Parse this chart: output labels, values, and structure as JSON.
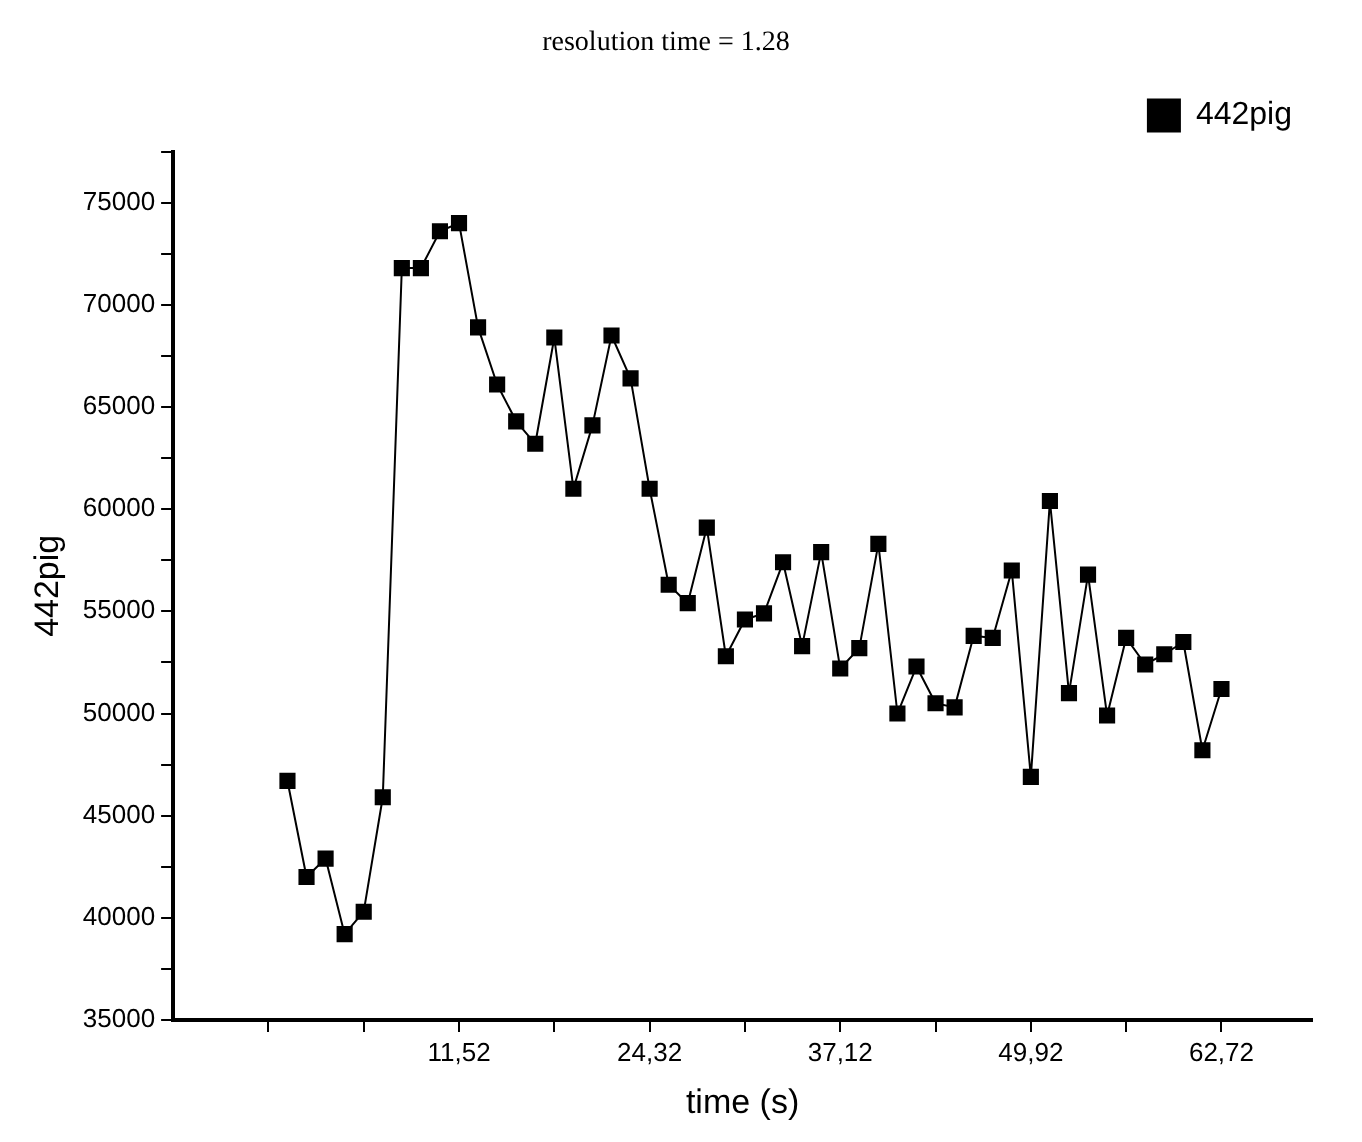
{
  "chart_data": {
    "type": "line",
    "title": "resolution time = 1.28",
    "xlabel": "time (s)",
    "ylabel": "442pig",
    "x": [
      0,
      1.28,
      2.56,
      3.84,
      5.12,
      6.4,
      7.68,
      8.96,
      10.24,
      11.52,
      12.8,
      14.08,
      15.36,
      16.64,
      17.92,
      19.2,
      20.48,
      21.76,
      23.04,
      24.32,
      25.6,
      26.88,
      28.16,
      29.44,
      30.72,
      32,
      33.28,
      34.56,
      35.84,
      37.12,
      38.4,
      39.68,
      40.96,
      42.24,
      43.52,
      44.8,
      46.08,
      47.36,
      48.64,
      49.92,
      51.2,
      52.48,
      53.76,
      55.04,
      56.32,
      57.6,
      58.88,
      60.16,
      61.44,
      62.72
    ],
    "series": [
      {
        "name": "442pig",
        "color": "#000000",
        "values": [
          46700,
          42000,
          42900,
          39200,
          40300,
          45900,
          71800,
          71800,
          73600,
          74000,
          68900,
          66100,
          64300,
          63200,
          68400,
          61000,
          64100,
          68500,
          66400,
          61000,
          56300,
          55400,
          59100,
          52800,
          54600,
          54900,
          57400,
          53300,
          57900,
          52200,
          53200,
          58300,
          50000,
          52300,
          50500,
          50300,
          53800,
          53700,
          57000,
          46900,
          60400,
          51000,
          56800,
          49900,
          53700,
          52400,
          52900,
          53500,
          48200,
          51200
        ]
      }
    ],
    "xlim": [
      -7.68,
      68.8
    ],
    "xticks": [
      {
        "value": -1.28,
        "label": null
      },
      {
        "value": 5.12,
        "label": null
      },
      {
        "value": 11.52,
        "label": "11,52"
      },
      {
        "value": 17.92,
        "label": null
      },
      {
        "value": 24.32,
        "label": "24,32"
      },
      {
        "value": 30.72,
        "label": null
      },
      {
        "value": 37.12,
        "label": "37,12"
      },
      {
        "value": 43.52,
        "label": null
      },
      {
        "value": 49.92,
        "label": "49,92"
      },
      {
        "value": 56.32,
        "label": null
      },
      {
        "value": 62.72,
        "label": "62,72"
      }
    ],
    "ylim": [
      35000,
      77500
    ],
    "yticks": [
      35000,
      {
        "value": 37500,
        "label": null
      },
      40000,
      {
        "value": 42500,
        "label": null
      },
      45000,
      {
        "value": 47500,
        "label": null
      },
      50000,
      {
        "value": 52500,
        "label": null
      },
      55000,
      {
        "value": 57500,
        "label": null
      },
      60000,
      {
        "value": 62500,
        "label": null
      },
      65000,
      {
        "value": 67500,
        "label": null
      },
      70000,
      {
        "value": 72500,
        "label": null
      },
      75000,
      {
        "value": 77500,
        "label": null
      }
    ],
    "grid": false,
    "legend": "top right",
    "marker": "square",
    "line_style": "solid"
  }
}
